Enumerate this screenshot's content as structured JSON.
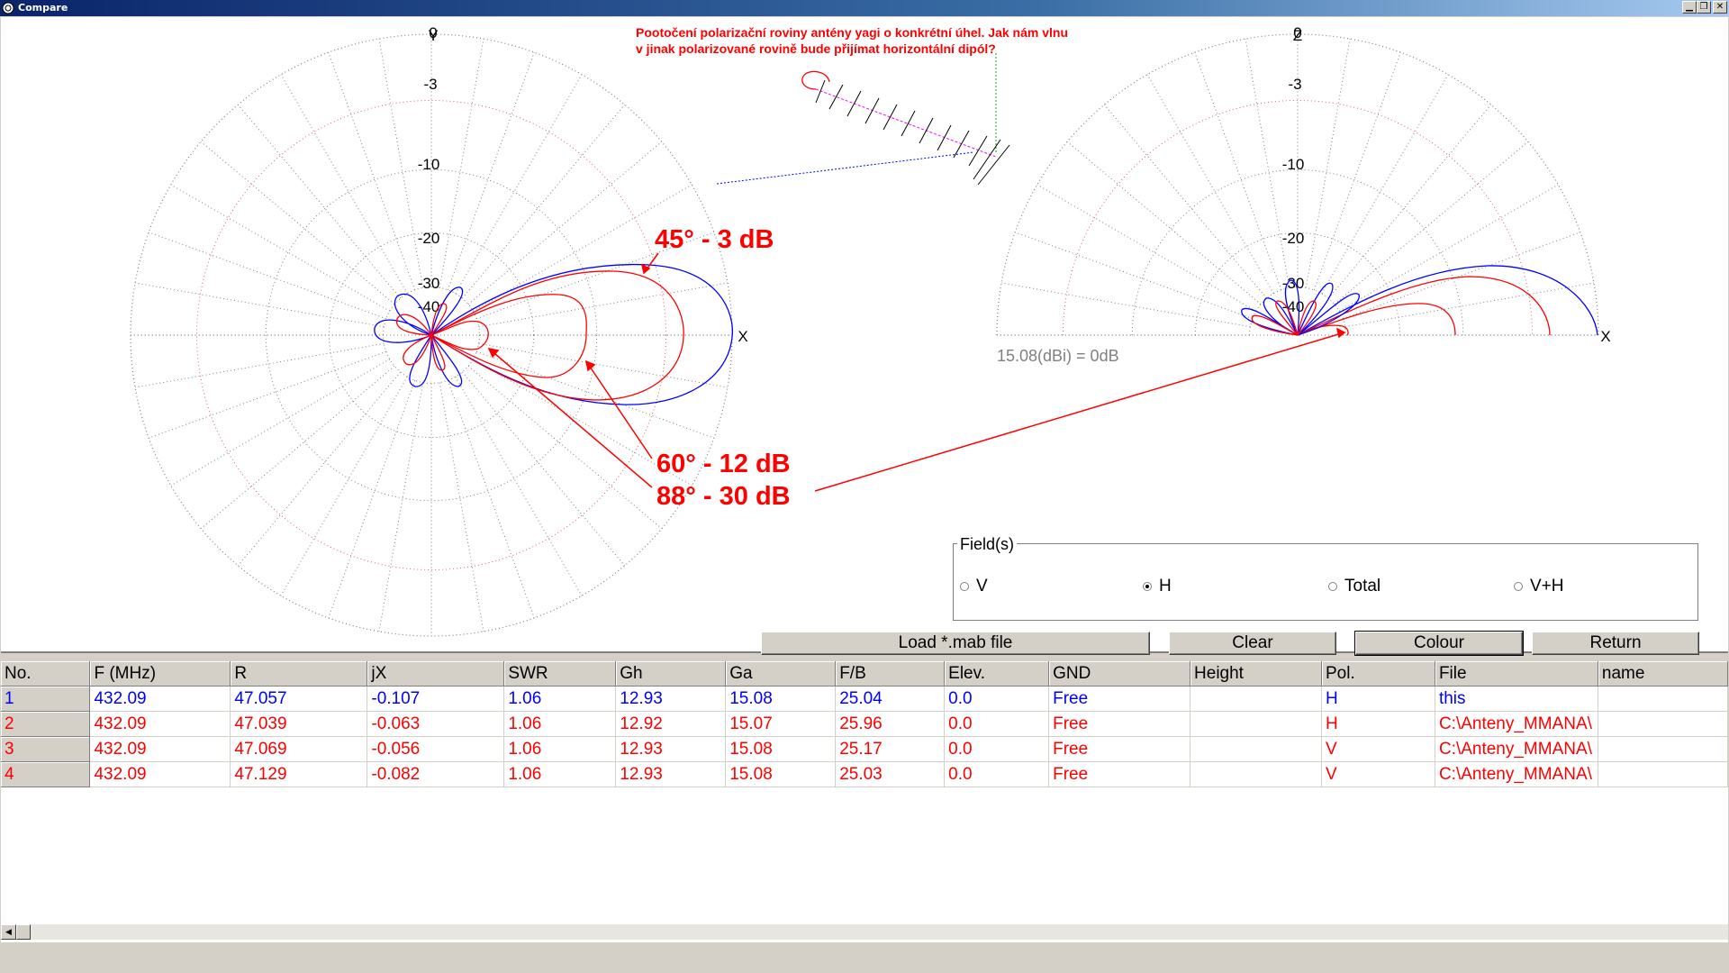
{
  "window": {
    "title": "Compare",
    "buttons": [
      "minimize",
      "restore",
      "close"
    ]
  },
  "plot": {
    "left_axis_top": "Y",
    "right_axis_top": "Z",
    "axis_x": "X",
    "db_labels": [
      "0",
      "-3",
      "-10",
      "-20",
      "-30",
      "-40"
    ],
    "reference": "15.08(dBi) = 0dB",
    "note_line1": "Pootočení polarizační roviny antény yagi o konkrétní úhel. Jak nám vlnu",
    "note_line2": "v jinak polarizované rovině bude přijímat horizontální dipól?",
    "annotation_45": "45° - 3 dB",
    "annotation_60": "60° - 12 dB",
    "annotation_88": "88° - 30 dB",
    "colors": {
      "series_blue": "#0000ff",
      "series_red": "#ff0000",
      "grid": "#808080",
      "grid_red": "#e06060"
    }
  },
  "fields": {
    "legend": "Field(s)",
    "options": [
      {
        "label": "V",
        "selected": false
      },
      {
        "label": "H",
        "selected": true
      },
      {
        "label": "Total",
        "selected": false
      },
      {
        "label": "V+H",
        "selected": false
      }
    ]
  },
  "buttons": {
    "load": "Load *.mab file",
    "clear": "Clear",
    "colour": "Colour",
    "return": "Return"
  },
  "table": {
    "columns": [
      "No.",
      "F (MHz)",
      "R",
      "jX",
      "SWR",
      "Gh",
      "Ga",
      "F/B",
      "Elev.",
      "GND",
      "Height",
      "Pol.",
      "File",
      "name"
    ],
    "rows": [
      {
        "color": "#0000ff",
        "cells": [
          "1",
          "432.09",
          "47.057",
          "-0.107",
          "1.06",
          "12.93",
          "15.08",
          "25.04",
          "0.0",
          "Free",
          "",
          "H",
          "this",
          ""
        ]
      },
      {
        "color": "#ff0000",
        "cells": [
          "2",
          "432.09",
          "47.039",
          "-0.063",
          "1.06",
          "12.92",
          "15.07",
          "25.96",
          "0.0",
          "Free",
          "",
          "H",
          "C:\\Anteny_MMANA\\",
          ""
        ]
      },
      {
        "color": "#ff0000",
        "cells": [
          "3",
          "432.09",
          "47.069",
          "-0.056",
          "1.06",
          "12.93",
          "15.08",
          "25.17",
          "0.0",
          "Free",
          "",
          "V",
          "C:\\Anteny_MMANA\\",
          ""
        ]
      },
      {
        "color": "#ff0000",
        "cells": [
          "4",
          "432.09",
          "47.129",
          "-0.082",
          "1.06",
          "12.93",
          "15.08",
          "25.03",
          "0.0",
          "Free",
          "",
          "V",
          "C:\\Anteny_MMANA\\",
          ""
        ]
      }
    ]
  }
}
